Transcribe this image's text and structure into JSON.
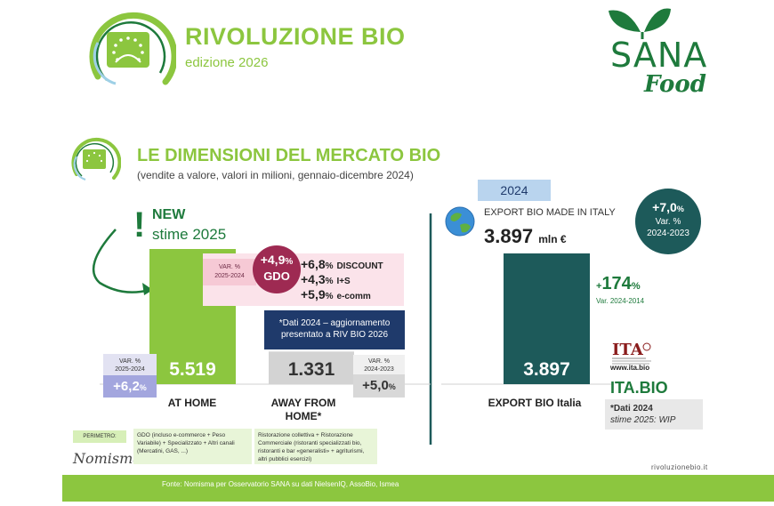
{
  "header": {
    "title": "RIVOLUZIONE BIO",
    "edition": "edizione 2026",
    "brand_word": "SANA",
    "brand_sub": "Food"
  },
  "section": {
    "title": "LE DIMENSIONI DEL MERCATO BIO",
    "subtitle": "(vendite a valore, valori in milioni, gennaio-dicembre 2024)"
  },
  "new_badge": {
    "exclaim": "!",
    "new": "NEW",
    "stime": "stime 2025"
  },
  "at_home": {
    "var_label_1": "VAR. %",
    "var_label_2": "2025-2024",
    "var_value": "+6,2",
    "var_unit": "%"
  },
  "gdo": {
    "var_label_1": "VAR. %",
    "var_label_2": "2025-2024",
    "value": "+4,9",
    "unit": "%",
    "label": "GDO"
  },
  "channels": [
    {
      "value": "+6,8",
      "unit": "%",
      "name": "DISCOUNT"
    },
    {
      "value": "+4,3",
      "unit": "%",
      "name": "I+S"
    },
    {
      "value": "+5,9",
      "unit": "%",
      "name": "e-comm"
    }
  ],
  "away": {
    "note_1": "*Dati 2024 – aggiornamento",
    "note_2": "presentato a RIV BIO 2026",
    "var_label_1": "VAR. %",
    "var_label_2": "2024-2023",
    "var_value": "+5,0",
    "var_unit": "%"
  },
  "export": {
    "year": "2024",
    "title": "EXPORT BIO MADE IN ITALY",
    "value": "3.897",
    "unit": "mln €",
    "circle_value": "+7,0",
    "circle_unit": "%",
    "circle_label_1": "Var. %",
    "circle_label_2": "2024-2023",
    "growth_value": "174",
    "growth_prefix": "+",
    "growth_unit": "%",
    "growth_label": "Var. 2024-2014"
  },
  "ita": {
    "mark": "ITA",
    "url": "www.ita.bio",
    "bio_a": "ITA",
    "bio_b": ".BIO",
    "note_1": "*Dati 2024",
    "note_2": "stime 2025: WIP"
  },
  "notes": {
    "perimetro": "PERIMETRO:",
    "nomisma": "Nomisma",
    "gdo_note": "GDO (incluso e-commerce + Peso Variabile) + Specializzato + Altri canali (Mercatini, GAS, ...)",
    "risto_note": "Ristorazione collettiva + Ristorazione Commerciale (ristoranti specializzati bio, ristoranti e bar «generalisti» + agriturismi, altri pubblici esercizi)"
  },
  "footer": {
    "url": "rivoluzionebio.it",
    "source": "Fonte: Nomisma per Osservatorio SANA su dati NielsenIQ, AssoBio, Ismea"
  },
  "colors": {
    "green": "#8cc63f",
    "dark_green": "#1e7a3c",
    "gray_bar": "#d3d3d3",
    "teal": "#1d5a5a"
  },
  "chart_data": {
    "type": "bar",
    "categories": [
      "AT HOME",
      "AWAY FROM HOME*",
      "EXPORT BIO Italia"
    ],
    "values": [
      5519,
      1331,
      3897
    ],
    "value_labels": [
      "5.519",
      "1.331",
      "3.897"
    ],
    "title": "LE DIMENSIONI DEL MERCATO BIO",
    "xlabel": "",
    "ylabel": "",
    "ylim": [
      0,
      6000
    ],
    "grid": false
  }
}
